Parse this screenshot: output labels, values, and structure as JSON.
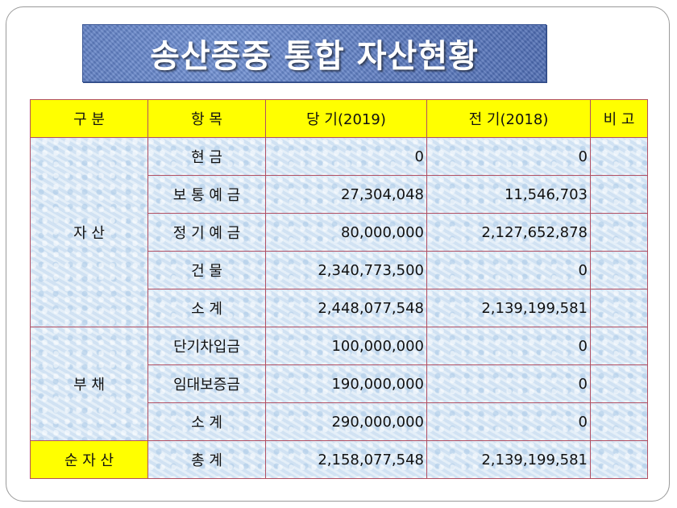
{
  "title": "송산종중 통합 자산현황",
  "headers": {
    "category": "구 분",
    "item": "항 목",
    "current": "당 기(2019)",
    "previous": "전 기(2018)",
    "note": "비 고"
  },
  "groups": {
    "assets": "자 산",
    "liabilities": "부 채",
    "net": "순 자 산"
  },
  "rows": [
    {
      "item": "현 금",
      "current": "0",
      "previous": "0"
    },
    {
      "item": "보 통 예 금",
      "current": "27,304,048",
      "previous": "11,546,703"
    },
    {
      "item": "정 기 예 금",
      "current": "80,000,000",
      "previous": "2,127,652,878"
    },
    {
      "item": "건 물",
      "current": "2,340,773,500",
      "previous": "0"
    },
    {
      "item": "소 계",
      "current": "2,448,077,548",
      "previous": "2,139,199,581"
    },
    {
      "item": "단기차입금",
      "current": "100,000,000",
      "previous": "0"
    },
    {
      "item": "임대보증금",
      "current": "190,000,000",
      "previous": "0"
    },
    {
      "item": "소 계",
      "current": "290,000,000",
      "previous": "0"
    },
    {
      "item": "총 계",
      "current": "2,158,077,548",
      "previous": "2,139,199,581"
    }
  ],
  "colors": {
    "header_bg": "#ffff00",
    "highlight_text": "#e01b1b",
    "grid_line": "#b25063",
    "title_bg": "#5e80c6"
  }
}
